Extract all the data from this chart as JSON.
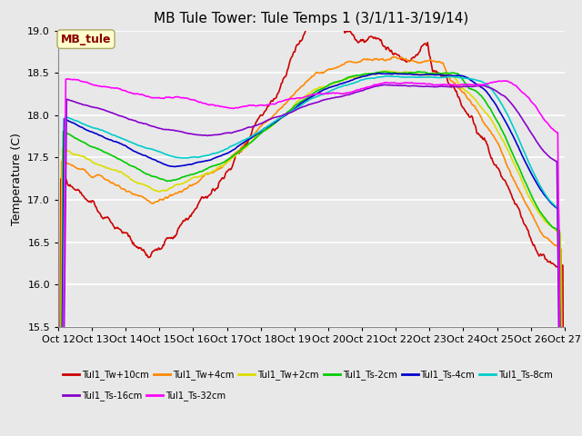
{
  "title": "MB Tule Tower: Tule Temps 1 (3/1/11-3/19/14)",
  "ylabel": "Temperature (C)",
  "ylim": [
    15.5,
    19.0
  ],
  "yticks": [
    15.5,
    16.0,
    16.5,
    17.0,
    17.5,
    18.0,
    18.5,
    19.0
  ],
  "xtick_labels": [
    "Oct 12",
    "Oct 13",
    "Oct 14",
    "Oct 15",
    "Oct 16",
    "Oct 17",
    "Oct 18",
    "Oct 19",
    "Oct 20",
    "Oct 21",
    "Oct 22",
    "Oct 23",
    "Oct 24",
    "Oct 25",
    "Oct 26",
    "Oct 27"
  ],
  "series": [
    {
      "label": "Tul1_Tw+10cm",
      "color": "#cc0000"
    },
    {
      "label": "Tul1_Tw+4cm",
      "color": "#ff8800"
    },
    {
      "label": "Tul1_Tw+2cm",
      "color": "#dddd00"
    },
    {
      "label": "Tul1_Ts-2cm",
      "color": "#00cc00"
    },
    {
      "label": "Tul1_Ts-4cm",
      "color": "#0000cc"
    },
    {
      "label": "Tul1_Ts-8cm",
      "color": "#00cccc"
    },
    {
      "label": "Tul1_Ts-16cm",
      "color": "#8800cc"
    },
    {
      "label": "Tul1_Ts-32cm",
      "color": "#ff00ff"
    }
  ],
  "background_color": "#e8e8e8",
  "grid_color": "#ffffff",
  "title_fontsize": 11,
  "annotation_label": "MB_tule",
  "annotation_color": "#880000",
  "annotation_bg": "#ffffcc"
}
